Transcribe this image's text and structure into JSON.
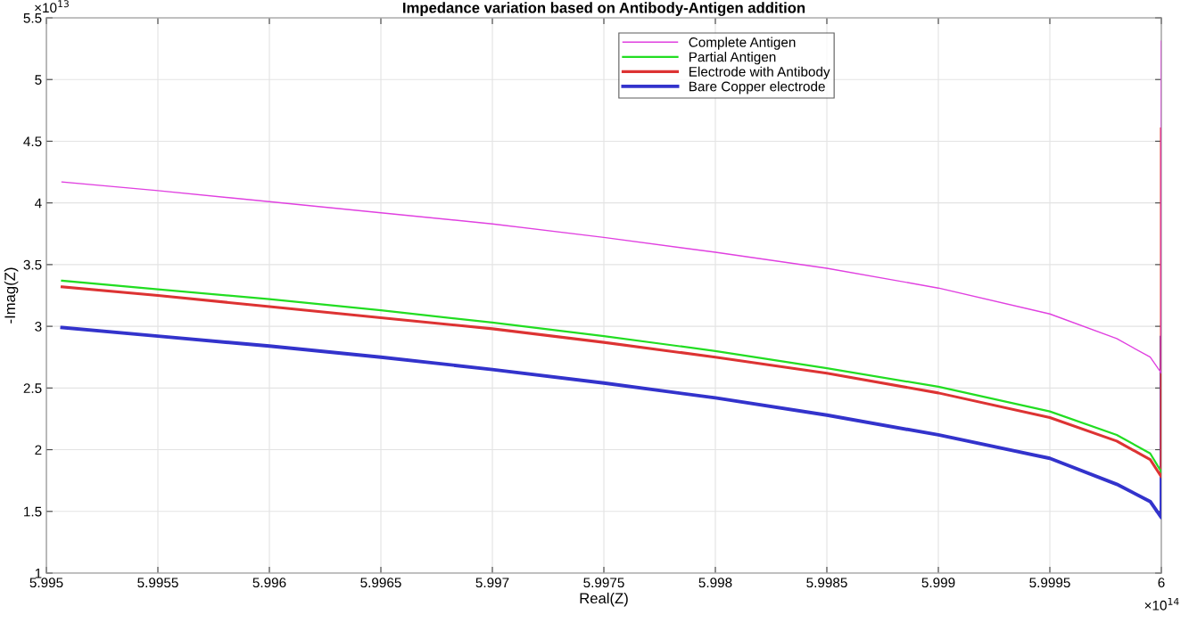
{
  "chart_data": {
    "type": "line",
    "title": "Impedance variation based on Antibody-Antigen addition",
    "xlabel": "Real(Z)",
    "ylabel": "-Imag(Z)",
    "x": [
      5.99507,
      5.9955,
      5.996,
      5.9965,
      5.997,
      5.9975,
      5.998,
      5.9985,
      5.999,
      5.9995,
      5.9998,
      5.99995,
      6.0,
      6.0
    ],
    "series": [
      {
        "name": "Complete Antigen",
        "color": "#e040e0",
        "values": [
          4.17,
          4.1,
          4.01,
          3.92,
          3.83,
          3.72,
          3.6,
          3.47,
          3.31,
          3.1,
          2.9,
          2.75,
          2.62,
          5.31
        ]
      },
      {
        "name": "Partial Antigen",
        "color": "#22dd22",
        "values": [
          3.37,
          3.3,
          3.22,
          3.13,
          3.03,
          2.92,
          2.8,
          2.66,
          2.51,
          2.31,
          2.12,
          1.97,
          1.82,
          null
        ]
      },
      {
        "name": "Electrode with Antibody",
        "color": "#dd3333",
        "values": [
          3.32,
          3.25,
          3.16,
          3.07,
          2.98,
          2.87,
          2.75,
          2.62,
          2.46,
          2.26,
          2.07,
          1.92,
          1.78,
          4.6
        ]
      },
      {
        "name": "Bare Copper electrode",
        "color": "#3333cc",
        "values": [
          2.99,
          2.92,
          2.84,
          2.75,
          2.65,
          2.54,
          2.42,
          2.28,
          2.12,
          1.93,
          1.72,
          1.58,
          1.45,
          2.91
        ]
      }
    ],
    "xlim": [
      5.995,
      6.0
    ],
    "xticks": [
      5.995,
      5.9955,
      5.996,
      5.9965,
      5.997,
      5.9975,
      5.998,
      5.9985,
      5.999,
      5.9995,
      6
    ],
    "ylim": [
      1,
      5.5
    ],
    "yticks": [
      1,
      1.5,
      2,
      2.5,
      3,
      3.5,
      4,
      4.5,
      5,
      5.5
    ],
    "annotations": [
      "×10$^{13}$",
      "×10$^{14}$"
    ],
    "grid": true,
    "legend": "top",
    "line_style": "solid"
  }
}
